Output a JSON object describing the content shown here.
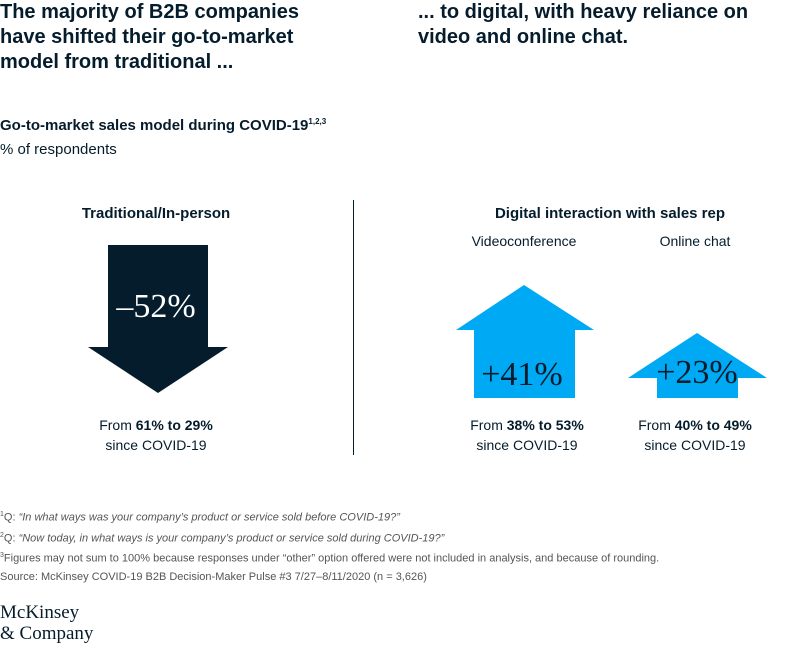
{
  "headline": {
    "left": "The majority of B2B companies have shifted their go-to-market model from traditional ...",
    "right": "... to digital, with heavy reliance on video and online chat."
  },
  "subtitle": {
    "text": "Go-to-market sales model during COVID-19",
    "notes": "1,2,3"
  },
  "unit": "% of respondents",
  "panels": [
    {
      "title": "Traditional/In-person",
      "items": [
        {
          "change": "–52%",
          "caption": {
            "prefix": "From ",
            "range": "61% to 29%",
            "suffix": "since COVID-19"
          }
        }
      ]
    },
    {
      "title": "Digital interaction with sales rep",
      "items": [
        {
          "label": "Videoconference",
          "change": "+41%",
          "caption": {
            "prefix": "From ",
            "range": "38% to 53%",
            "suffix": "since COVID-19"
          }
        },
        {
          "label": "Online chat",
          "change": "+23%",
          "caption": {
            "prefix": "From ",
            "range": "40% to 49%",
            "suffix": "since COVID-19"
          }
        }
      ]
    }
  ],
  "footnotes": [
    {
      "number": "1",
      "prefix": "Q: ",
      "text": "“In what ways was your company’s product or service sold before COVID-19?”"
    },
    {
      "number": "2",
      "prefix": "Q: ",
      "text": "“Now today, in what ways is your company’s product or service sold during COVID-19?”"
    },
    {
      "number": "3",
      "text": "Figures may not sum to 100% because responses under “other” option offered were not included in analysis, and because of rounding."
    }
  ],
  "source": "Source: McKinsey COVID-19 B2B Decision-Maker Pulse #3 7/27–8/11/2020 (n = 3,626)",
  "logo": [
    "McKinsey",
    "& Company"
  ]
}
